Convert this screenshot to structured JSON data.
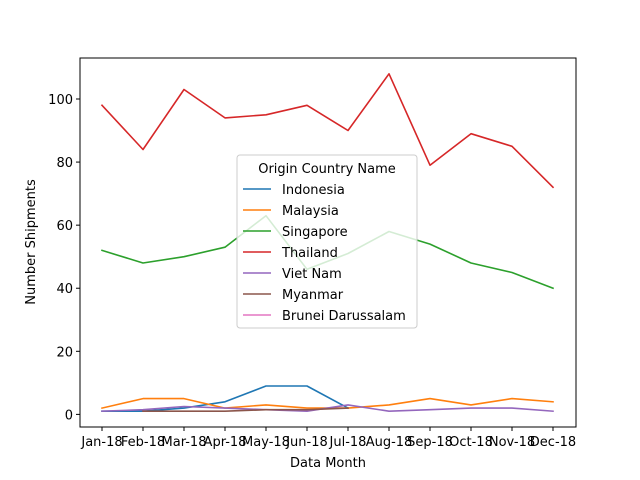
{
  "chart_data": {
    "type": "line",
    "categories": [
      "Jan-18",
      "Feb-18",
      "Mar-18",
      "Apr-18",
      "May-18",
      "Jun-18",
      "Jul-18",
      "Aug-18",
      "Sep-18",
      "Oct-18",
      "Nov-18",
      "Dec-18"
    ],
    "xlabel": "Data Month",
    "ylabel": "Number Shipments",
    "ylim": [
      -4,
      113
    ],
    "yticks": [
      0,
      20,
      40,
      60,
      80,
      100
    ],
    "legend": {
      "title": "Origin Country Name",
      "placement": "center"
    },
    "grid": false,
    "series": [
      {
        "name": "Indonesia",
        "color": "#1f77b4",
        "values": [
          1,
          1,
          2,
          4,
          9,
          9,
          2,
          null,
          null,
          null,
          null,
          null
        ]
      },
      {
        "name": "Malaysia",
        "color": "#ff7f0e",
        "values": [
          2,
          5,
          5,
          2,
          3,
          2,
          2,
          3,
          5,
          3,
          5,
          4
        ]
      },
      {
        "name": "Singapore",
        "color": "#2ca02c",
        "values": [
          52,
          48,
          50,
          53,
          63,
          46,
          51,
          58,
          54,
          48,
          45,
          40
        ]
      },
      {
        "name": "Thailand",
        "color": "#d62728",
        "values": [
          98,
          84,
          103,
          94,
          95,
          98,
          90,
          108,
          79,
          89,
          85,
          72
        ]
      },
      {
        "name": "Viet Nam",
        "color": "#9467bd",
        "values": [
          1,
          1.5,
          2.5,
          2,
          1.5,
          1,
          3,
          1,
          1.5,
          2,
          2,
          1
        ]
      },
      {
        "name": "Myanmar",
        "color": "#8c564b",
        "values": [
          null,
          1,
          1,
          1,
          1.5,
          1.5,
          2,
          null,
          null,
          null,
          null,
          null
        ]
      },
      {
        "name": "Brunei Darussalam",
        "color": "#e377c2",
        "values": [
          null,
          null,
          null,
          null,
          null,
          null,
          null,
          null,
          null,
          null,
          null,
          null
        ]
      }
    ]
  }
}
